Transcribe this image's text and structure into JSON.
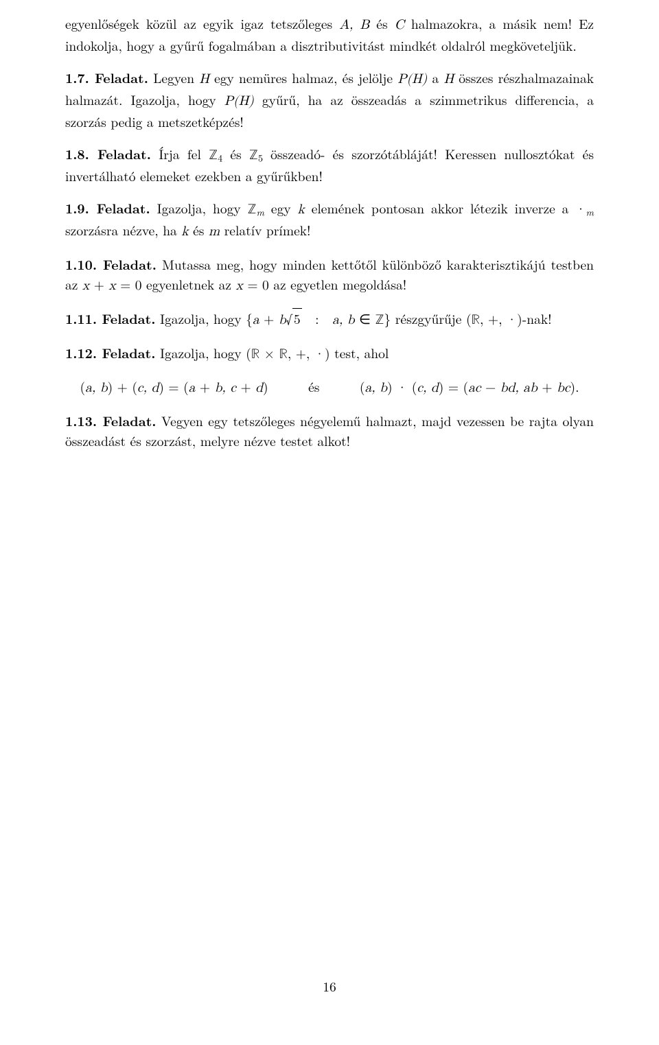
{
  "intro": {
    "part1": "egyenlőségek közül az egyik igaz tetszőleges ",
    "part2": " és ",
    "part3": " halmazokra, a másik nem! Ez indokolja, hogy a gyűrű fogalmában a disztributivitást mindkét oldalról megköveteljük.",
    "AB": "A, B",
    "C": "C"
  },
  "ex17": {
    "label": "1.7. Feladat.",
    "t1": " Legyen ",
    "H": "H",
    "t2": " egy nemüres halmaz, és jelölje ",
    "PH": "P(H)",
    "t3": " a ",
    "t4": " összes részhalmazainak halmazát. Igazolja, hogy ",
    "t5": " gyűrű, ha az összeadás a szimmetrikus differencia, a szorzás pedig a metszetképzés!"
  },
  "ex18": {
    "label": "1.8. Feladat.",
    "t1": " Írja fel ",
    "Z4": "ℤ",
    "Z4sub": "4",
    "t2": " és ",
    "Z5": "ℤ",
    "Z5sub": "5",
    "t3": " összeadó- és szorzótábláját! Keressen nullosztókat és invertálható elemeket ezekben a gyűrűkben!"
  },
  "ex19": {
    "label": "1.9. Feladat.",
    "t1": " Igazolja, hogy ",
    "Zm": "ℤ",
    "Zmsub": "m",
    "t2": " egy ",
    "k": "k",
    "t3": " elemének pontosan akkor létezik inverze a ",
    "dot": "·",
    "msub": "m",
    "t4": " szorzásra nézve, ha ",
    "t5": " és ",
    "m": "m",
    "t6": " relatív prímek!"
  },
  "ex110": {
    "label": "1.10. Feladat.",
    "t1": " Mutassa meg, hogy minden kettőtől különböző karakterisztikájú testben az ",
    "eq1": "x + x = 0",
    "t2": " egyenletnek az ",
    "eq2": "x = 0",
    "t3": " az egyetlen megoldása!"
  },
  "ex111": {
    "label": "1.11. Feladat.",
    "t1": " Igazolja, hogy ",
    "set1": "{a + b",
    "rad": "5",
    "set2": "  :  a, b ∈ ℤ}",
    "t2": " részgyűrűje ",
    "paren": "(ℝ, +, ·)",
    "t3": "-nak!"
  },
  "ex112": {
    "label": "1.12. Feladat.",
    "t1": " Igazolja, hogy ",
    "paren": "(ℝ × ℝ, +, ·)",
    "t2": " test, ahol",
    "eq_left": "(a, b) + (c, d) = (a + b, c + d)",
    "mid": "és",
    "eq_right": "(a, b) · (c, d) = (ac − bd, ab + bc)."
  },
  "ex113": {
    "label": "1.13. Feladat.",
    "t1": " Vegyen egy tetszőleges négyelemű halmazt, majd vezessen be rajta olyan összeadást és szorzást, melyre nézve testet alkot!"
  },
  "pageNumber": "16"
}
